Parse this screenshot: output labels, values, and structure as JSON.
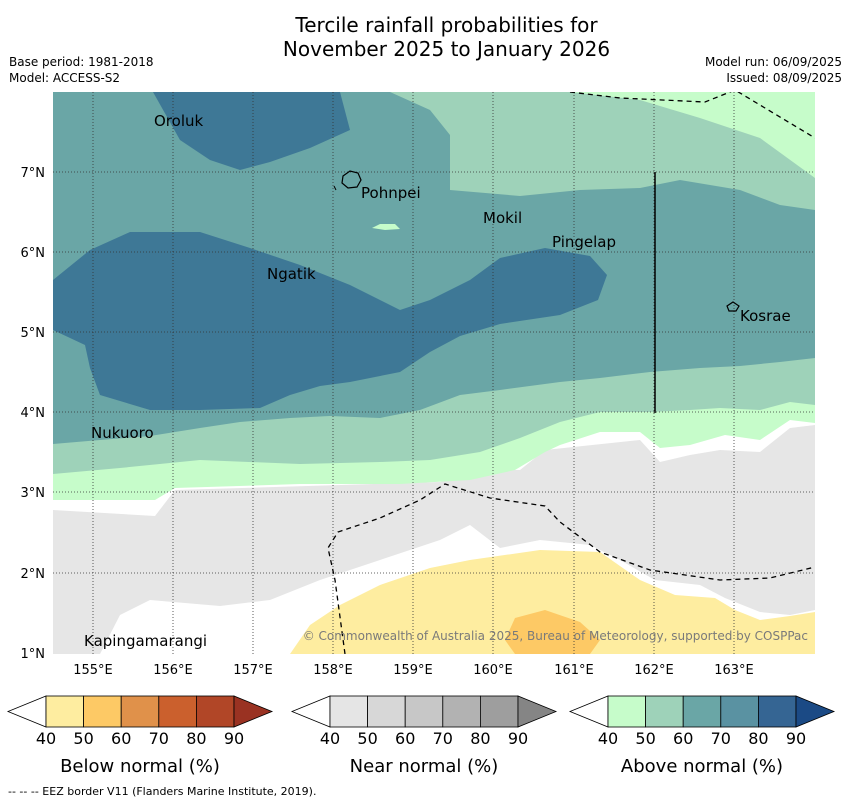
{
  "title": {
    "line1": "Tercile rainfall probabilities for",
    "line2": "November 2025 to January 2026"
  },
  "meta": {
    "base_period": "Base period: 1981-2018",
    "model": "Model: ACCESS-S2",
    "model_run": "Model run: 06/09/2025",
    "issued": "Issued: 08/09/2025"
  },
  "map": {
    "lon_labels": [
      "155°E",
      "156°E",
      "157°E",
      "158°E",
      "159°E",
      "160°E",
      "161°E",
      "162°E",
      "163°E"
    ],
    "lat_labels": [
      "7°N",
      "6°N",
      "5°N",
      "4°N",
      "3°N",
      "2°N",
      "1°N"
    ],
    "places": [
      "Oroluk",
      "Pohnpei",
      "Mokil",
      "Pingelap",
      "Ngatik",
      "Kosrae",
      "Nukuoro",
      "Kapingamarangi"
    ],
    "copyright": "© Commonwealth of Australia 2025, Bureau of Meteorology, supported by COSPPac"
  },
  "legends": [
    {
      "title": "Below normal (%)",
      "ticks": [
        "40",
        "50",
        "60",
        "70",
        "80",
        "90"
      ],
      "colors": [
        "#ffffff",
        "#feeda0",
        "#fdc965",
        "#e0914a",
        "#cb602d",
        "#b14627",
        "#9a3222"
      ]
    },
    {
      "title": "Near normal (%)",
      "ticks": [
        "40",
        "50",
        "60",
        "70",
        "80",
        "90"
      ],
      "colors": [
        "#ffffff",
        "#e5e5e5",
        "#d7d7d7",
        "#c7c7c7",
        "#b2b2b2",
        "#9e9e9e",
        "#858585"
      ]
    },
    {
      "title": "Above normal (%)",
      "ticks": [
        "40",
        "50",
        "60",
        "70",
        "80",
        "90"
      ],
      "colors": [
        "#ffffff",
        "#c6fcca",
        "#9ed2b9",
        "#6aa6a6",
        "#5a92a2",
        "#356593",
        "#1b4a85"
      ]
    }
  ],
  "footer": "--  --  -- EEZ border V11 (Flanders Marine Institute, 2019)."
}
